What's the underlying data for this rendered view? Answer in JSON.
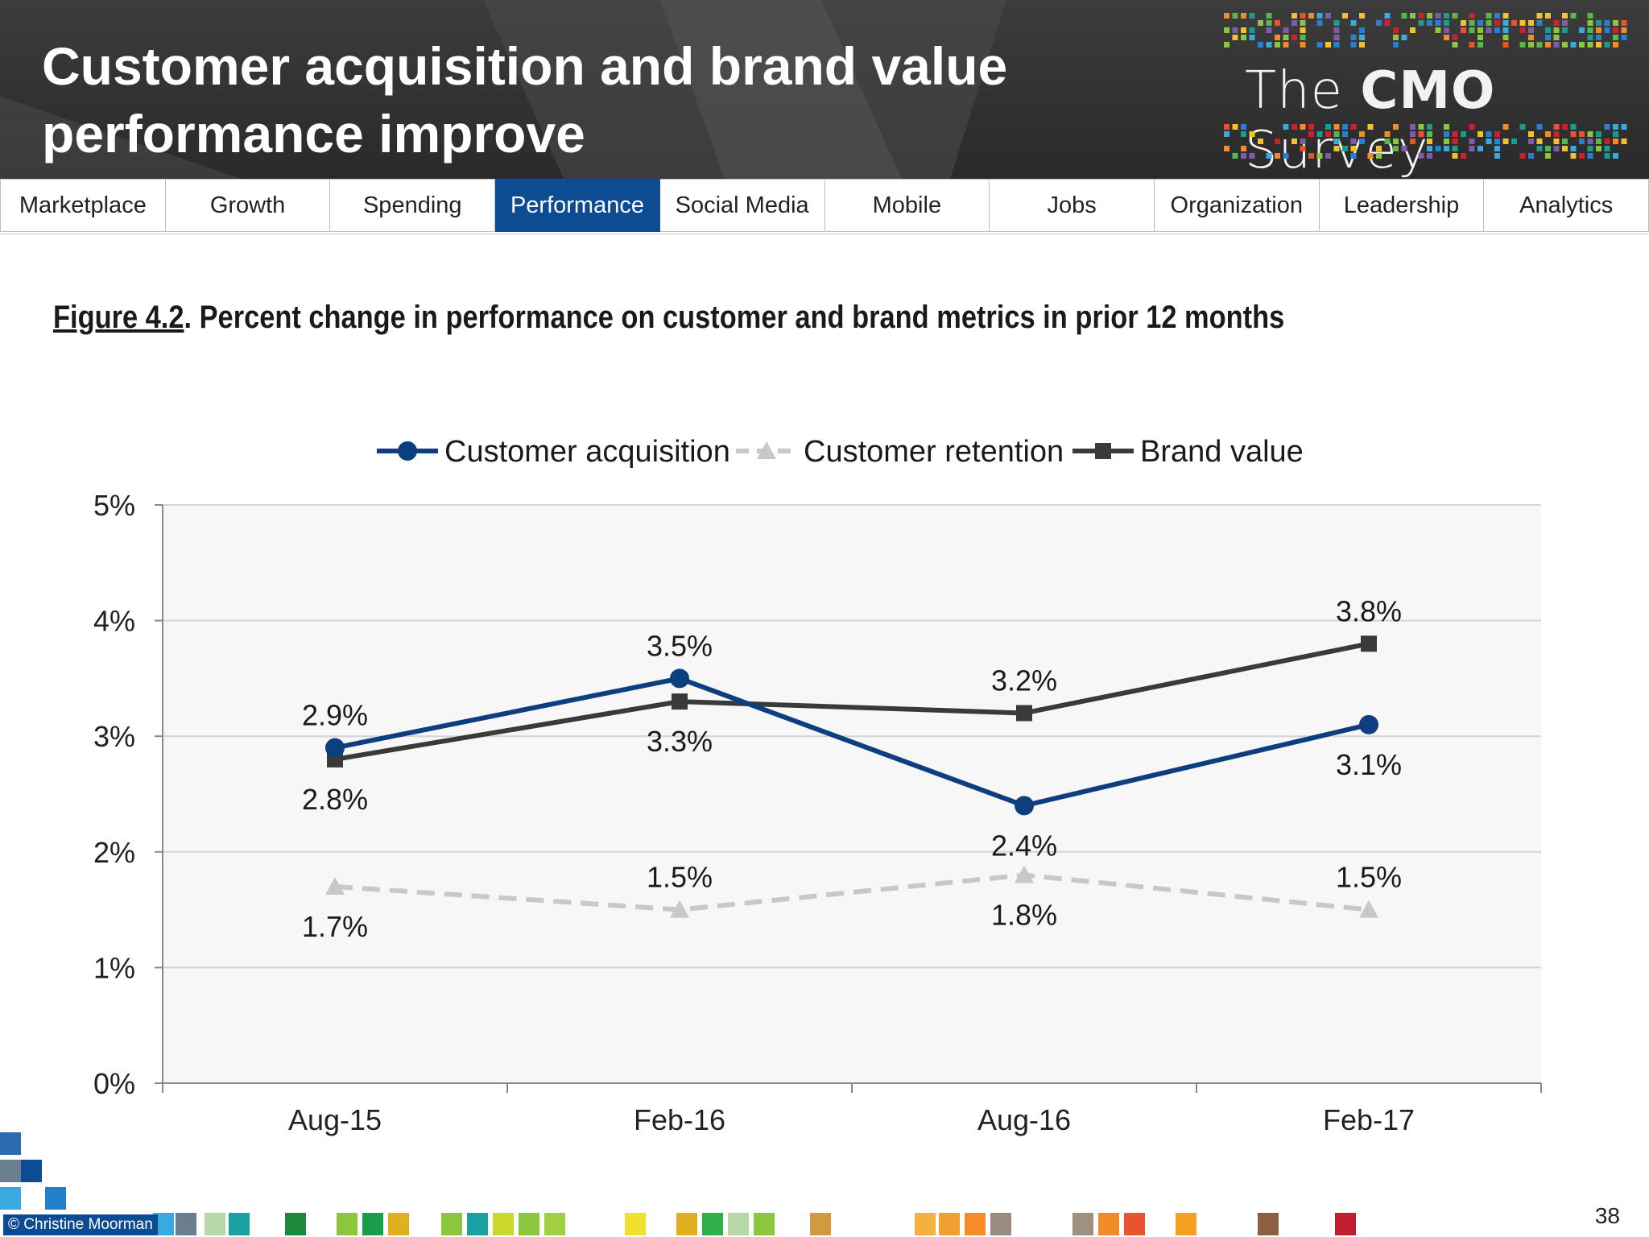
{
  "header": {
    "title_line1": "Customer acquisition and brand value",
    "title_line2": "performance improve",
    "logo": {
      "prefix": "The ",
      "brand": "CMO",
      "suffix": " Survey"
    }
  },
  "nav": {
    "tabs": [
      {
        "label": "Marketplace",
        "active": false
      },
      {
        "label": "Growth",
        "active": false
      },
      {
        "label": "Spending",
        "active": false
      },
      {
        "label": "Performance",
        "active": true
      },
      {
        "label": "Social Media",
        "active": false
      },
      {
        "label": "Mobile",
        "active": false
      },
      {
        "label": "Jobs",
        "active": false
      },
      {
        "label": "Organization",
        "active": false
      },
      {
        "label": "Leadership",
        "active": false
      },
      {
        "label": "Analytics",
        "active": false
      }
    ],
    "active_color": "#0d4c93"
  },
  "figure": {
    "label": "Figure 4.2",
    "caption": ".  Percent change in performance on customer and brand metrics in prior 12 months"
  },
  "chart_data": {
    "type": "line",
    "categories": [
      "Aug-15",
      "Feb-16",
      "Aug-16",
      "Feb-17"
    ],
    "ylim": [
      0,
      5
    ],
    "yticks": [
      "0%",
      "1%",
      "2%",
      "3%",
      "4%",
      "5%"
    ],
    "grid": true,
    "legend_position": "top",
    "series": [
      {
        "name": "Customer acquisition",
        "values": [
          2.9,
          3.5,
          2.4,
          3.1
        ],
        "labels": [
          "2.9%",
          "3.5%",
          "2.4%",
          "3.1%"
        ],
        "color": "#0d3f7f",
        "marker": "circle",
        "dashed": false
      },
      {
        "name": "Customer retention",
        "values": [
          1.7,
          1.5,
          1.8,
          1.5
        ],
        "labels": [
          "1.7%",
          "1.5%",
          "1.8%",
          "1.5%"
        ],
        "color": "#c8c8c8",
        "marker": "triangle",
        "dashed": true
      },
      {
        "name": "Brand value",
        "values": [
          2.8,
          3.3,
          3.2,
          3.8
        ],
        "labels": [
          "2.8%",
          "3.3%",
          "3.2%",
          "3.8%"
        ],
        "color": "#3a3a3a",
        "marker": "square",
        "dashed": false
      }
    ]
  },
  "footer": {
    "copyright": "© Christine Moorman",
    "page_number": "38"
  }
}
